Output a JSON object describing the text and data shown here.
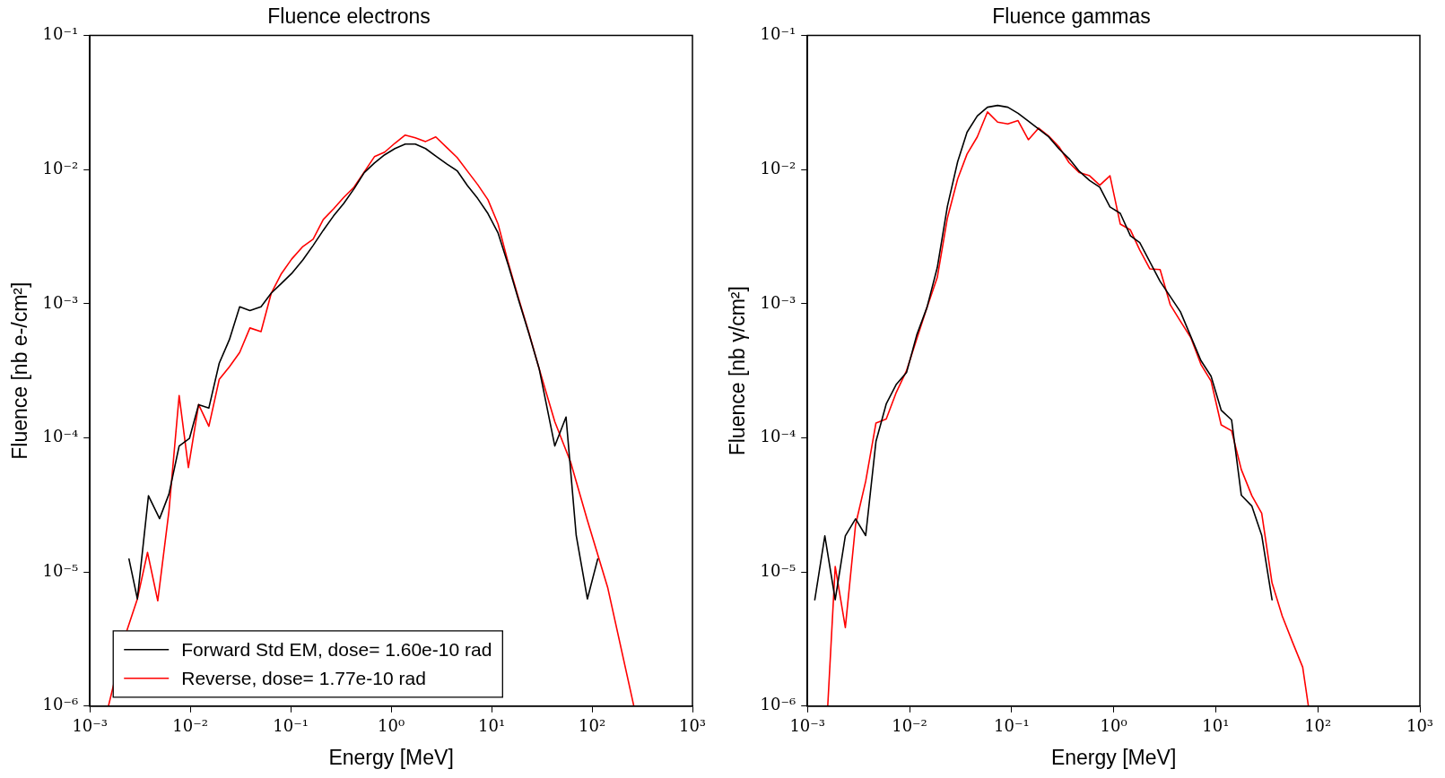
{
  "chart_data": [
    {
      "type": "line",
      "title": "Fluence electrons",
      "xlabel": "Energy [MeV]",
      "ylabel": "Fluence [nb e-/cm²]",
      "log": "xy",
      "grid": false,
      "legend": "bottom left",
      "xlim": [
        0.001,
        1000
      ],
      "ylim": [
        1e-06,
        0.1
      ],
      "xticks": [
        {
          "value": 0.001,
          "label": "10⁻³"
        },
        {
          "value": 0.01,
          "label": "10⁻²"
        },
        {
          "value": 0.1,
          "label": "10⁻¹"
        },
        {
          "value": 1,
          "label": "10⁰"
        },
        {
          "value": 10,
          "label": "10¹"
        },
        {
          "value": 100,
          "label": "10²"
        },
        {
          "value": 1000,
          "label": "10³"
        }
      ],
      "yticks": [
        {
          "value": 1e-06,
          "label": "10⁻⁶"
        },
        {
          "value": 1e-05,
          "label": "10⁻⁵"
        },
        {
          "value": 0.0001,
          "label": "10⁻⁴"
        },
        {
          "value": 0.001,
          "label": "10⁻³"
        },
        {
          "value": 0.01,
          "label": "10⁻²"
        },
        {
          "value": 0.1,
          "label": "10⁻¹"
        }
      ],
      "series": [
        {
          "name": "Forward Std EM, dose= 1.60e-10 rad",
          "color": "#000000",
          "x": [
            0.00245,
            0.00297,
            0.00383,
            0.00494,
            0.00612,
            0.00774,
            0.0098,
            0.0121,
            0.0153,
            0.0194,
            0.0245,
            0.031,
            0.0392,
            0.0506,
            0.064,
            0.0808,
            0.102,
            0.132,
            0.167,
            0.211,
            0.267,
            0.337,
            0.427,
            0.539,
            0.681,
            0.861,
            1.09,
            1.38,
            1.74,
            2.2,
            2.84,
            3.6,
            4.54,
            5.74,
            7.26,
            9.2,
            11.6,
            14.7,
            18.6,
            23.5,
            29.7,
            42.6,
            55.1,
            69.6,
            89.9,
            114
          ],
          "values": [
            1.25e-05,
            6.3e-06,
            3.7e-05,
            2.5e-05,
            3.8e-05,
            8.7e-05,
            9.9e-05,
            0.000177,
            0.000167,
            0.00036,
            0.00054,
            0.00095,
            0.00089,
            0.00095,
            0.0012,
            0.00142,
            0.00168,
            0.00212,
            0.00272,
            0.00353,
            0.00452,
            0.0056,
            0.0072,
            0.0095,
            0.0112,
            0.0129,
            0.01435,
            0.0155,
            0.0155,
            0.01435,
            0.01248,
            0.011,
            0.0098,
            0.0076,
            0.0061,
            0.0047,
            0.00337,
            0.00193,
            0.00106,
            0.0006,
            0.00033,
            8.7e-05,
            0.000143,
            1.87e-05,
            6.3e-06,
            1.25e-05
          ]
        },
        {
          "name": "Reverse, dose= 1.77e-10 rad",
          "color": "#ff0000",
          "x": [
            0.00153,
            0.0023,
            0.00297,
            0.00375,
            0.00474,
            0.00612,
            0.00774,
            0.00957,
            0.0121,
            0.0153,
            0.0194,
            0.0245,
            0.031,
            0.0392,
            0.0506,
            0.064,
            0.0808,
            0.102,
            0.132,
            0.167,
            0.211,
            0.267,
            0.337,
            0.427,
            0.539,
            0.681,
            0.861,
            1.09,
            1.38,
            1.74,
            2.2,
            2.78,
            3.6,
            4.54,
            5.74,
            7.26,
            9.2,
            11.6,
            14.7,
            18.6,
            23.5,
            29.7,
            42.6,
            61.2,
            89.9,
            143,
            261
          ],
          "values": [
            1e-06,
            3.54e-06,
            6.3e-06,
            1.4e-05,
            6.1e-06,
            2.83e-05,
            0.000207,
            6e-05,
            0.000177,
            0.000122,
            0.000273,
            0.000339,
            0.000433,
            0.00066,
            0.00062,
            0.0012,
            0.00168,
            0.00215,
            0.00267,
            0.00303,
            0.00425,
            0.0051,
            0.0062,
            0.0074,
            0.0096,
            0.01248,
            0.0135,
            0.01574,
            0.0181,
            0.01725,
            0.0162,
            0.01753,
            0.01455,
            0.0123,
            0.00975,
            0.00774,
            0.00596,
            0.00393,
            0.002,
            0.00109,
            0.00061,
            0.00033,
            0.000132,
            6.6e-05,
            2.43e-05,
            7.7e-06,
            1e-06
          ]
        }
      ]
    },
    {
      "type": "line",
      "title": "Fluence gammas",
      "xlabel": "Energy [MeV]",
      "ylabel": "Fluence [nb γ/cm²]",
      "log": "xy",
      "grid": false,
      "xlim": [
        0.001,
        1000
      ],
      "ylim": [
        1e-06,
        0.1
      ],
      "xticks": [
        {
          "value": 0.001,
          "label": "10⁻³"
        },
        {
          "value": 0.01,
          "label": "10⁻²"
        },
        {
          "value": 0.1,
          "label": "10⁻¹"
        },
        {
          "value": 1,
          "label": "10⁰"
        },
        {
          "value": 10,
          "label": "10¹"
        },
        {
          "value": 100,
          "label": "10²"
        },
        {
          "value": 1000,
          "label": "10³"
        }
      ],
      "yticks": [
        {
          "value": 1e-06,
          "label": "10⁻⁶"
        },
        {
          "value": 1e-05,
          "label": "10⁻⁵"
        },
        {
          "value": 0.0001,
          "label": "10⁻⁴"
        },
        {
          "value": 0.001,
          "label": "10⁻³"
        },
        {
          "value": 0.01,
          "label": "10⁻²"
        },
        {
          "value": 0.1,
          "label": "10⁻¹"
        }
      ],
      "series": [
        {
          "color": "#000000",
          "x": [
            0.00118,
            0.00148,
            0.00187,
            0.00235,
            0.00296,
            0.00372,
            0.00469,
            0.00591,
            0.00743,
            0.00936,
            0.01178,
            0.01483,
            0.0187,
            0.0235,
            0.0296,
            0.0366,
            0.0461,
            0.058,
            0.073,
            0.0919,
            0.1156,
            0.146,
            0.1837,
            0.231,
            0.291,
            0.366,
            0.461,
            0.581,
            0.731,
            0.92,
            1.16,
            1.46,
            1.8,
            2.85,
            4.51,
            7.16,
            9.0,
            11.3,
            14.3,
            17.8,
            22.6,
            28.2,
            35.6
          ],
          "values": [
            6.2e-06,
            1.86e-05,
            6.2e-06,
            1.86e-05,
            2.49e-05,
            1.87e-05,
            9.4e-05,
            0.000179,
            0.000251,
            0.000308,
            0.000586,
            0.00094,
            0.00186,
            0.00533,
            0.01143,
            0.019,
            0.0251,
            0.0292,
            0.0301,
            0.0292,
            0.0263,
            0.023,
            0.0201,
            0.01754,
            0.01429,
            0.01205,
            0.0097,
            0.0083,
            0.0074,
            0.00527,
            0.00472,
            0.00321,
            0.00286,
            0.00147,
            0.00087,
            0.000377,
            0.000288,
            0.000161,
            0.000136,
            3.74e-05,
            3.1e-05,
            1.88e-05,
            6.2e-06
          ]
        },
        {
          "color": "#ff0000",
          "x": [
            0.00158,
            0.00187,
            0.00235,
            0.00296,
            0.00372,
            0.00469,
            0.00591,
            0.00743,
            0.00936,
            0.01178,
            0.01483,
            0.0187,
            0.0235,
            0.0296,
            0.0366,
            0.0461,
            0.058,
            0.073,
            0.0919,
            0.1156,
            0.146,
            0.1837,
            0.231,
            0.291,
            0.366,
            0.461,
            0.581,
            0.731,
            0.92,
            1.16,
            1.46,
            1.8,
            2.26,
            2.85,
            3.59,
            4.51,
            5.69,
            7.16,
            9.0,
            11.3,
            14.3,
            17.8,
            22.6,
            28.2,
            35.6,
            44.8,
            56.5,
            71.1,
            80.9
          ],
          "values": [
            1e-06,
            1.1e-05,
            3.85e-06,
            2.25e-05,
            4.75e-05,
            0.000129,
            0.000138,
            0.000219,
            0.000318,
            0.000548,
            0.00094,
            0.00157,
            0.00436,
            0.0085,
            0.01306,
            0.01754,
            0.0269,
            0.0226,
            0.0219,
            0.0232,
            0.0167,
            0.0204,
            0.0178,
            0.0148,
            0.01127,
            0.0095,
            0.009,
            0.00765,
            0.009,
            0.00393,
            0.00355,
            0.00252,
            0.00182,
            0.0018,
            0.00098,
            0.00074,
            0.00056,
            0.000353,
            0.000265,
            0.000125,
            0.000113,
            5.8e-05,
            3.7e-05,
            2.74e-05,
            8.3e-06,
            4.7e-06,
            3e-06,
            1.95e-06,
            1e-06
          ]
        }
      ]
    }
  ]
}
